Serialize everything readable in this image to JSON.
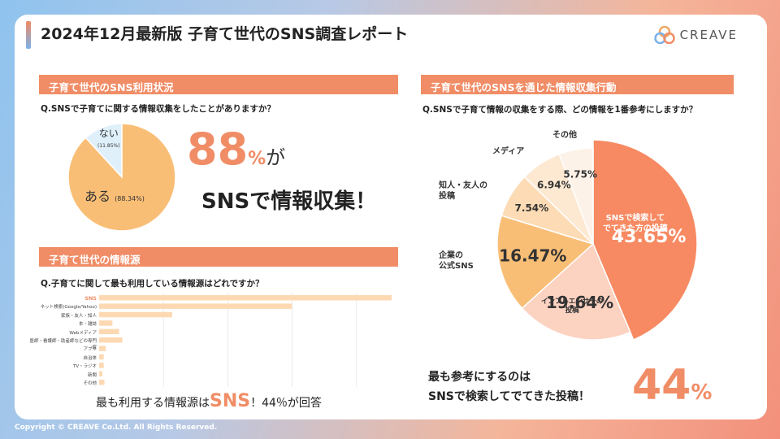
{
  "header": {
    "title": "2024年12月最新版 子育て世代のSNS調査レポート",
    "logo_text": "CREAVE"
  },
  "section1": {
    "heading": "子育て世代のSNS利用状況",
    "question": "Q.SNSで子育てに関する情報収集をしたことがありますか？",
    "big_number": "88",
    "big_pct": "%",
    "big_ga": "が",
    "big_line2": "SNSで情報収集！",
    "pie_labels": {
      "nai": "ない",
      "nai_pct": "(11.85%)",
      "aru": "ある",
      "aru_pct": "(88.34%)"
    }
  },
  "section2": {
    "heading": "子育て世代の情報源",
    "question": "Q.子育てに関して最も利用している情報源はどれですか？",
    "bottom_prefix": "最も利用する情報源は",
    "bottom_sns": "SNS",
    "bottom_suffix": "！44％が回答"
  },
  "section3": {
    "heading": "子育て世代のSNSを通じた情報収集行動",
    "question": "Q.SNSで子育て情報の収集をする際、どの情報を1番参考にしますか？",
    "pie_labels": {
      "sono": "その他",
      "media": "メディア",
      "chijin": "知人・友人の\n投稿",
      "kigyo": "企業の\n公式SNS",
      "influencer": "インフルエンサーの\n投稿",
      "sns_search": "SNSで検索して\nでてきた方の投稿"
    },
    "msg_line1": "最も参考にするのは",
    "msg_line2": "SNSで検索してでてきた投稿！",
    "big_number": "44",
    "big_pct": "%"
  },
  "footer": {
    "copyright": "Copyright © CREAVE Co.Ltd. All Rights Reserved."
  },
  "colors": {
    "accent": "#f08d66",
    "pie_main": "#f9be76",
    "pie_light": "#dff0fb",
    "bar": "#fdd9b3"
  },
  "chart_data": [
    {
      "type": "pie",
      "labels": [
        "ある",
        "ない"
      ],
      "values": [
        88.34,
        11.85
      ]
    },
    {
      "type": "bar",
      "orientation": "horizontal",
      "categories": [
        "SNS",
        "ネット検索(Google/Yahoo)",
        "家族・友人・知人",
        "本・雑誌",
        "Webメディア",
        "医師・看護師・助産師などの専門家",
        "アプリ",
        "自治体",
        "TV・ラジオ",
        "新聞",
        "その他"
      ],
      "values": [
        44,
        29,
        11,
        2,
        3,
        3.5,
        1,
        0.7,
        0.7,
        0.5,
        0.8
      ],
      "xlim": [
        0,
        44
      ],
      "grid": true
    },
    {
      "type": "pie",
      "labels": [
        "SNSで検索してでてきた方の投稿",
        "インフルエンサーの投稿",
        "企業の公式SNS",
        "知人・友人の投稿",
        "メディア",
        "その他"
      ],
      "values": [
        43.65,
        19.64,
        16.47,
        7.54,
        6.94,
        5.75
      ],
      "value_labels": [
        "43.65%",
        "19.64%",
        "16.47%",
        "7.54%",
        "6.94%",
        "5.75%"
      ],
      "colors": [
        "#f78a62",
        "#fcd2c1",
        "#f9be76",
        "#fddcb5",
        "#fde8d2",
        "#fdf2e8"
      ]
    }
  ]
}
